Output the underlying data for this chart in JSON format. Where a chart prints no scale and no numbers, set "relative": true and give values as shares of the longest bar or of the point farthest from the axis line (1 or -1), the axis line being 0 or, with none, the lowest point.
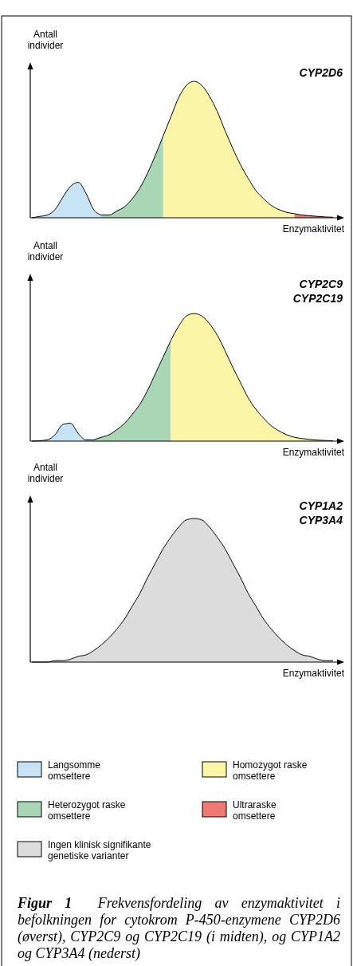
{
  "chart_data": [
    {
      "type": "area",
      "relative": true,
      "legend": "bottom",
      "title": "CYP2D6",
      "ylabel": "Antall individer",
      "xlabel": "Enzymaktivitet",
      "categories": [
        null,
        null,
        null,
        null,
        null,
        null,
        null,
        null,
        null,
        null,
        null,
        null,
        null,
        null,
        null,
        null,
        null,
        null,
        null,
        null,
        null,
        null,
        null,
        null,
        null,
        null,
        null,
        null,
        null,
        null,
        null,
        null,
        null,
        null,
        null,
        null,
        null,
        null,
        null,
        null
      ],
      "series": [
        {
          "name": "Langsomme omsettere",
          "color": "#c6e4f5",
          "values": [
            0,
            0.01,
            0.02,
            0.06,
            0.15,
            0.23,
            0.26,
            0.18,
            0.06,
            0.02,
            null,
            null,
            null,
            null,
            null,
            null,
            null,
            null,
            null,
            null,
            null,
            null,
            null,
            null,
            null,
            null,
            null,
            null,
            null,
            null,
            null,
            null,
            null,
            null,
            null,
            null,
            null,
            null,
            null,
            null
          ]
        },
        {
          "name": "Heterozygot raske omsettere",
          "color": "#a9d7b6",
          "values": [
            null,
            null,
            null,
            null,
            null,
            null,
            null,
            null,
            null,
            0.02,
            0.02,
            0.05,
            0.08,
            0.14,
            0.22,
            0.33,
            0.46,
            0.6,
            null,
            null,
            null,
            null,
            null,
            null,
            null,
            null,
            null,
            null,
            null,
            null,
            null,
            null,
            null,
            null,
            null,
            null,
            null,
            null,
            null,
            null
          ]
        },
        {
          "name": "Homozygot raske omsettere",
          "color": "#fbf5a8",
          "values": [
            null,
            null,
            null,
            null,
            null,
            null,
            null,
            null,
            null,
            null,
            null,
            null,
            null,
            null,
            null,
            null,
            null,
            0.6,
            0.74,
            0.88,
            0.97,
            1,
            0.97,
            0.89,
            0.78,
            0.64,
            0.51,
            0.39,
            0.29,
            0.2,
            0.14,
            0.09,
            0.06,
            0.04,
            0.03,
            null,
            null,
            null,
            null,
            null
          ]
        },
        {
          "name": "Ultraraske omsettere",
          "color": "#ee7a72",
          "values": [
            null,
            null,
            null,
            null,
            null,
            null,
            null,
            null,
            null,
            null,
            null,
            null,
            null,
            null,
            null,
            null,
            null,
            null,
            null,
            null,
            null,
            null,
            null,
            null,
            null,
            null,
            null,
            null,
            null,
            null,
            null,
            null,
            null,
            null,
            0.03,
            0.02,
            0.015,
            0.01,
            0.006,
            0.004
          ]
        }
      ]
    },
    {
      "type": "area",
      "relative": true,
      "legend": "bottom",
      "title": "CYP2C9",
      "subtitle": "CYP2C19",
      "ylabel": "Antall individer",
      "xlabel": "Enzymaktivitet",
      "categories": [
        null,
        null,
        null,
        null,
        null,
        null,
        null,
        null,
        null,
        null,
        null,
        null,
        null,
        null,
        null,
        null,
        null,
        null,
        null,
        null,
        null,
        null,
        null,
        null,
        null,
        null,
        null,
        null,
        null,
        null,
        null,
        null,
        null,
        null,
        null,
        null,
        null,
        null,
        null,
        null
      ],
      "series": [
        {
          "name": "Langsomme omsettere",
          "color": "#c6e4f5",
          "values": [
            0,
            0.003,
            0.01,
            0.05,
            0.13,
            0.14,
            0.06,
            0.01,
            0.01,
            null,
            null,
            null,
            null,
            null,
            null,
            null,
            null,
            null,
            null,
            null,
            null,
            null,
            null,
            null,
            null,
            null,
            null,
            null,
            null,
            null,
            null,
            null,
            null,
            null,
            null,
            null,
            null,
            null,
            null,
            null
          ]
        },
        {
          "name": "Heterozygot raske omsettere",
          "color": "#a9d7b6",
          "values": [
            null,
            null,
            null,
            null,
            null,
            null,
            null,
            null,
            0.01,
            0.03,
            0.05,
            0.09,
            0.14,
            0.21,
            0.29,
            0.4,
            0.53,
            0.66,
            0.79,
            null,
            null,
            null,
            null,
            null,
            null,
            null,
            null,
            null,
            null,
            null,
            null,
            null,
            null,
            null,
            null,
            null,
            null,
            null,
            null,
            null
          ]
        },
        {
          "name": "Homozygot raske omsettere",
          "color": "#fbf5a8",
          "values": [
            null,
            null,
            null,
            null,
            null,
            null,
            null,
            null,
            null,
            null,
            null,
            null,
            null,
            null,
            null,
            null,
            null,
            null,
            0.79,
            0.9,
            0.98,
            1,
            0.98,
            0.92,
            0.83,
            0.71,
            0.58,
            0.46,
            0.34,
            0.25,
            0.18,
            0.12,
            0.08,
            0.05,
            0.03,
            0.02,
            0.013,
            0.008,
            0.005,
            0.003
          ]
        }
      ]
    },
    {
      "type": "area",
      "relative": true,
      "title": "CYP1A2",
      "subtitle": "CYP3A4",
      "ylabel": "Antall individer",
      "xlabel": "Enzymaktivitet",
      "legend": "bottom",
      "categories": [
        null,
        null,
        null,
        null,
        null,
        null,
        null,
        null,
        null,
        null,
        null,
        null,
        null,
        null,
        null,
        null,
        null,
        null,
        null,
        null,
        null,
        null,
        null,
        null,
        null,
        null,
        null,
        null,
        null,
        null,
        null,
        null,
        null,
        null,
        null,
        null,
        null,
        null,
        null,
        null
      ],
      "series": [
        {
          "name": "Ingen klinisk signifikante genetiske varianter",
          "color": "#dcdcdc",
          "values": [
            0,
            0,
            0,
            0.01,
            0.01,
            0.02,
            0.04,
            0.05,
            0.08,
            0.12,
            0.17,
            0.23,
            0.3,
            0.39,
            0.48,
            0.59,
            0.69,
            0.79,
            0.87,
            0.94,
            0.99,
            1,
            0.99,
            0.94,
            0.87,
            0.79,
            0.69,
            0.59,
            0.48,
            0.39,
            0.3,
            0.23,
            0.17,
            0.12,
            0.08,
            0.05,
            0.04,
            0.02,
            0.01,
            0.01
          ]
        }
      ],
      "annotations": [
        "Figur 1",
        "Frekvensfordeling av enzymaktivitet i befolkningen for cytokrom P-450-enzymene CYP2D6 (øverst), CYP2C9 og CYP2C19 (i midten), og CYP1A2 og CYP3A4 (nederst)"
      ]
    }
  ]
}
